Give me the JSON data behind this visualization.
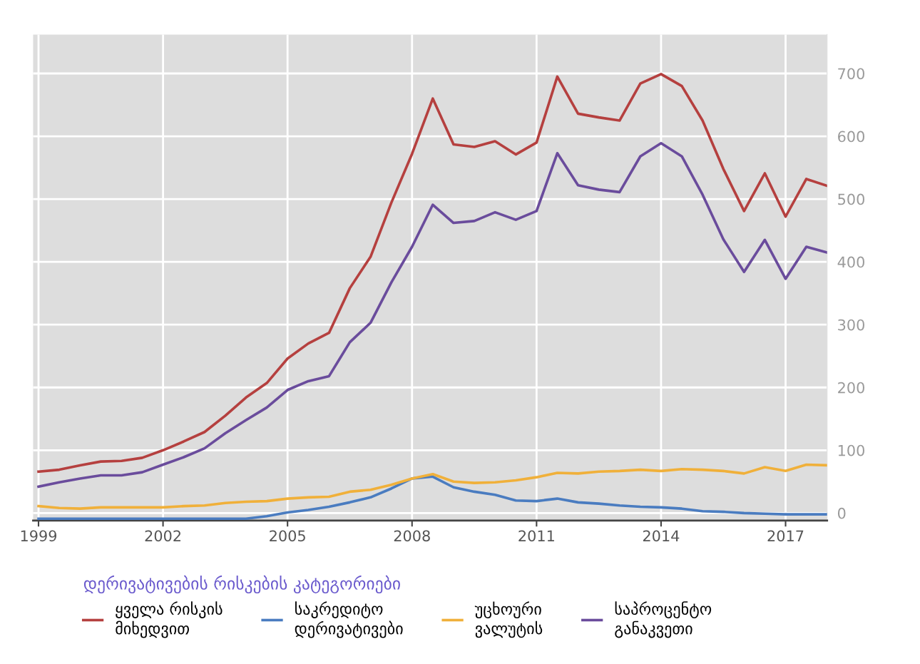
{
  "chart_data": {
    "type": "line",
    "x": [
      1999.0,
      1999.5,
      2000.0,
      2000.5,
      2001.0,
      2001.5,
      2002.0,
      2002.5,
      2003.0,
      2003.5,
      2004.0,
      2004.5,
      2005.0,
      2005.5,
      2006.0,
      2006.5,
      2007.0,
      2007.5,
      2008.0,
      2008.5,
      2009.0,
      2009.5,
      2010.0,
      2010.5,
      2011.0,
      2011.5,
      2012.0,
      2012.5,
      2013.0,
      2013.5,
      2014.0,
      2014.5,
      2015.0,
      2015.5,
      2016.0,
      2016.5,
      2017.0,
      2017.5,
      2018.0
    ],
    "series": [
      {
        "name": "ყველა რისკის\nმიხედვით",
        "color": "#b5403f",
        "values": [
          66,
          69,
          76,
          82,
          83,
          88,
          100,
          114,
          129,
          155,
          184,
          207,
          246,
          270,
          287,
          358,
          408,
          494,
          572,
          660,
          587,
          583,
          592,
          571,
          590,
          695,
          636,
          630,
          625,
          684,
          699,
          680,
          625,
          548,
          481,
          541,
          472,
          532,
          521
        ]
      },
      {
        "name": "საკრედიტო\nდერივატივები",
        "color": "#4a7cc0",
        "values": [
          -9,
          -9,
          -9,
          -9,
          -9,
          -9,
          -9,
          -9,
          -9,
          -9,
          -9,
          -5,
          1,
          5,
          10,
          17,
          25,
          39,
          55,
          58,
          41,
          34,
          29,
          20,
          19,
          23,
          17,
          15,
          12,
          10,
          9,
          7,
          3,
          2,
          0,
          -1,
          -2,
          -2,
          -2
        ]
      },
      {
        "name": "უცხოური\nვალუტის",
        "color": "#f0b03a",
        "values": [
          11,
          8,
          7,
          9,
          9,
          9,
          9,
          11,
          12,
          16,
          18,
          19,
          23,
          25,
          26,
          34,
          37,
          45,
          55,
          62,
          50,
          48,
          49,
          52,
          57,
          64,
          63,
          66,
          67,
          69,
          67,
          70,
          69,
          67,
          63,
          73,
          67,
          77,
          76
        ]
      },
      {
        "name": "საპროცენტო\nგანაკვეთი",
        "color": "#6a4c9c",
        "values": [
          42,
          49,
          55,
          60,
          60,
          65,
          77,
          89,
          103,
          127,
          148,
          168,
          196,
          210,
          218,
          272,
          303,
          367,
          424,
          491,
          462,
          465,
          479,
          467,
          481,
          573,
          522,
          515,
          511,
          568,
          589,
          568,
          507,
          436,
          384,
          435,
          373,
          424,
          415
        ]
      }
    ],
    "xlim": [
      1998.87,
      2018.0
    ],
    "xticks": [
      1999,
      2002,
      2005,
      2008,
      2011,
      2014,
      2017
    ],
    "ylim": [
      -12,
      762
    ],
    "yticks": [
      0,
      100,
      200,
      300,
      400,
      500,
      600,
      700
    ],
    "grid": true,
    "legend": "bottom",
    "legend_title": "დერივატივების რისკების კატეგორიები",
    "marker": "none",
    "line_style": "solid"
  }
}
